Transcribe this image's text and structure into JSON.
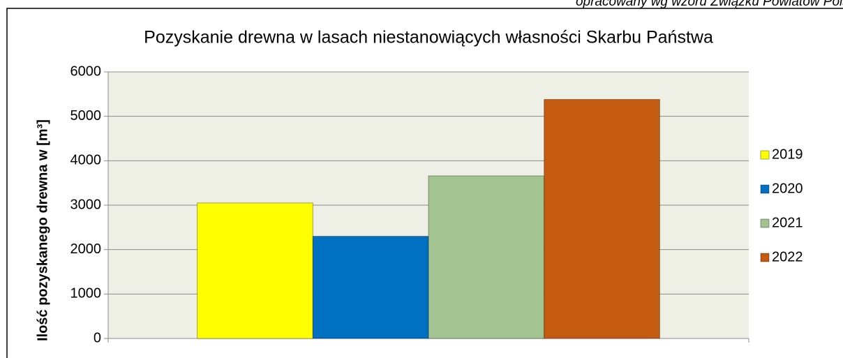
{
  "chart_data": {
    "type": "bar",
    "note": "opracowany wg wzoru  Związku Powiatów Pols",
    "title": "Pozyskanie drewna w lasach niestanowiących własności Skarbu Państwa",
    "y_label": "Ilość pozyskanego drewna w [m³]",
    "categories": [
      null
    ],
    "series": [
      {
        "name": "2019",
        "color": "#ffff00",
        "values": [
          3050
        ]
      },
      {
        "name": "2020",
        "color": "#0070c0",
        "values": [
          2300
        ]
      },
      {
        "name": "2021",
        "color": "#a3c490",
        "values": [
          3660
        ]
      },
      {
        "name": "2022",
        "color": "#c55a11",
        "values": [
          5380
        ]
      }
    ],
    "ylim": [
      0,
      6000
    ],
    "yticks": [
      0,
      1000,
      2000,
      3000,
      4000,
      5000,
      6000
    ],
    "grid": true,
    "legend": "right"
  }
}
